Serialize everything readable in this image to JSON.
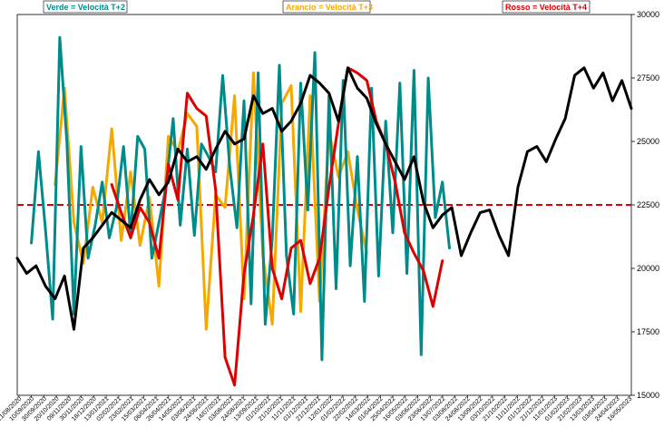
{
  "chart_data": {
    "type": "line",
    "title": "",
    "xlabel": "",
    "ylabel": "",
    "ylim": [
      15000,
      30000
    ],
    "y_ticks": [
      "30000",
      "27500",
      "25000",
      "22500",
      "20000",
      "17500",
      "15000"
    ],
    "y_tick_values": [
      30000,
      27500,
      25000,
      22500,
      20000,
      17500,
      15000
    ],
    "reference_line": {
      "value": 22500,
      "color": "#dd0000",
      "style": "dashed"
    },
    "x_tick_labels": [
      "21/08/2020",
      "10/09/2020",
      "30/09/2020",
      "20/10/2020",
      "09/11/2020",
      "30/11/2020",
      "18/12/2020",
      "13/01/2021",
      "02/02/2021",
      "23/02/2021",
      "15/03/2021",
      "06/04/2021",
      "26/04/2021",
      "14/05/2021",
      "03/06/2021",
      "24/06/2021",
      "14/07/2021",
      "03/08/2021",
      "24/08/2021",
      "13/09/2021",
      "01/10/2021",
      "21/10/2021",
      "11/11/2021",
      "01/12/2021",
      "21/12/2021",
      "12/01/2022",
      "01/02/2022",
      "22/02/2022",
      "14/03/2022",
      "01/04/2022",
      "25/04/2022",
      "16/05/2022",
      "03/06/2022",
      "23/06/2022",
      "13/07/2022",
      "03/08/2022",
      "24/08/2022",
      "13/09/2022",
      "03/10/2022",
      "21/10/2022",
      "11/11/2022",
      "01/12/2022",
      "21/12/2022",
      "11/01/2023",
      "01/02/2023",
      "21/02/2023",
      "13/03/2023",
      "03/04/2023",
      "24/04/2023",
      "16/05/2023"
    ],
    "legend": [
      {
        "label": "Verde = Velocità T+2",
        "color": "#008b8b",
        "position": "top-left"
      },
      {
        "label": "Arancio = Velocità T+3",
        "color": "#f5a800",
        "position": "top-center"
      },
      {
        "label": "Rosso = Velocità T+4",
        "color": "#dd0000",
        "position": "top-right"
      }
    ],
    "series": [
      {
        "color": "#000000",
        "axis": "right",
        "values": [
          [
            0,
            20400
          ],
          [
            2,
            19800
          ],
          [
            4,
            20100
          ],
          [
            6,
            19300
          ],
          [
            8,
            18800
          ],
          [
            10,
            19700
          ],
          [
            12,
            17600
          ],
          [
            14,
            20800
          ],
          [
            16,
            21200
          ],
          [
            18,
            21700
          ],
          [
            20,
            22200
          ],
          [
            22,
            21900
          ],
          [
            24,
            21600
          ],
          [
            26,
            22700
          ],
          [
            28,
            23500
          ],
          [
            30,
            22900
          ],
          [
            32,
            23400
          ],
          [
            34,
            24700
          ],
          [
            36,
            24200
          ],
          [
            38,
            24400
          ],
          [
            40,
            23900
          ],
          [
            42,
            24700
          ],
          [
            44,
            25400
          ],
          [
            46,
            24900
          ],
          [
            48,
            25100
          ],
          [
            50,
            26800
          ],
          [
            52,
            26100
          ],
          [
            54,
            26300
          ],
          [
            56,
            25400
          ],
          [
            58,
            25800
          ],
          [
            60,
            26500
          ],
          [
            62,
            27600
          ],
          [
            64,
            27300
          ],
          [
            66,
            26900
          ],
          [
            68,
            25800
          ],
          [
            70,
            27900
          ],
          [
            72,
            27100
          ],
          [
            74,
            26700
          ],
          [
            76,
            25700
          ],
          [
            78,
            24900
          ],
          [
            80,
            24200
          ],
          [
            82,
            23500
          ],
          [
            84,
            24400
          ],
          [
            86,
            22600
          ],
          [
            88,
            21600
          ],
          [
            90,
            22100
          ],
          [
            92,
            22400
          ],
          [
            94,
            20500
          ],
          [
            96,
            21400
          ],
          [
            98,
            22200
          ],
          [
            100,
            22300
          ],
          [
            102,
            21300
          ],
          [
            104,
            20500
          ],
          [
            106,
            23200
          ],
          [
            108,
            24600
          ],
          [
            110,
            24800
          ],
          [
            112,
            24200
          ],
          [
            114,
            25100
          ],
          [
            116,
            25900
          ],
          [
            118,
            27600
          ],
          [
            120,
            27900
          ],
          [
            122,
            27100
          ],
          [
            124,
            27700
          ],
          [
            126,
            26600
          ],
          [
            128,
            27400
          ],
          [
            130,
            26300
          ]
        ]
      },
      {
        "color": "#008b8b",
        "axis": "right",
        "values": [
          [
            3,
            21000
          ],
          [
            4.5,
            24600
          ],
          [
            6,
            21500
          ],
          [
            7.5,
            18000
          ],
          [
            9,
            29100
          ],
          [
            10.5,
            25000
          ],
          [
            12,
            18200
          ],
          [
            13.5,
            24800
          ],
          [
            15,
            20400
          ],
          [
            16.5,
            21700
          ],
          [
            18,
            23400
          ],
          [
            19.5,
            21200
          ],
          [
            21,
            22400
          ],
          [
            22.5,
            24800
          ],
          [
            24,
            21300
          ],
          [
            25.5,
            25200
          ],
          [
            27,
            24700
          ],
          [
            28.5,
            20400
          ],
          [
            30,
            21800
          ],
          [
            31.5,
            23200
          ],
          [
            33,
            25900
          ],
          [
            34.5,
            21700
          ],
          [
            36,
            24700
          ],
          [
            37.5,
            21300
          ],
          [
            39,
            24900
          ],
          [
            40.5,
            24400
          ],
          [
            42,
            23800
          ],
          [
            43.5,
            27600
          ],
          [
            45,
            24000
          ],
          [
            46.5,
            21600
          ],
          [
            48,
            26600
          ],
          [
            49.5,
            18600
          ],
          [
            51,
            27700
          ],
          [
            52.5,
            17800
          ],
          [
            54,
            21200
          ],
          [
            55.5,
            28000
          ],
          [
            57,
            20500
          ],
          [
            58.5,
            18200
          ],
          [
            60,
            27300
          ],
          [
            61.5,
            22300
          ],
          [
            63,
            28500
          ],
          [
            64.5,
            16400
          ],
          [
            66,
            26800
          ],
          [
            67.5,
            19200
          ],
          [
            69,
            27400
          ],
          [
            70.5,
            20100
          ],
          [
            72,
            24400
          ],
          [
            73.5,
            18700
          ],
          [
            75,
            27100
          ],
          [
            76.5,
            19700
          ],
          [
            78,
            25800
          ],
          [
            79.5,
            21400
          ],
          [
            81,
            27300
          ],
          [
            82.5,
            19800
          ],
          [
            84,
            27800
          ],
          [
            85.5,
            16600
          ],
          [
            87,
            27500
          ],
          [
            88.5,
            22000
          ],
          [
            90,
            23400
          ],
          [
            91.5,
            20800
          ]
        ]
      },
      {
        "color": "#f5a800",
        "axis": "right",
        "values": [
          [
            8,
            23300
          ],
          [
            10,
            27100
          ],
          [
            12,
            21800
          ],
          [
            14,
            20200
          ],
          [
            16,
            23200
          ],
          [
            18,
            21800
          ],
          [
            20,
            25500
          ],
          [
            22,
            21100
          ],
          [
            24,
            23800
          ],
          [
            26,
            20900
          ],
          [
            28,
            22800
          ],
          [
            30,
            19300
          ],
          [
            32,
            25200
          ],
          [
            34,
            24600
          ],
          [
            36,
            26100
          ],
          [
            38,
            25600
          ],
          [
            40,
            17600
          ],
          [
            42,
            22900
          ],
          [
            44,
            22400
          ],
          [
            46,
            26800
          ],
          [
            48,
            18800
          ],
          [
            50,
            27700
          ],
          [
            52,
            20500
          ],
          [
            54,
            17800
          ],
          [
            56,
            26500
          ],
          [
            58,
            27200
          ],
          [
            60,
            18300
          ],
          [
            62,
            26800
          ],
          [
            64,
            18700
          ],
          [
            66,
            25400
          ],
          [
            68,
            23600
          ],
          [
            70,
            24600
          ],
          [
            72,
            22300
          ],
          [
            74,
            20600
          ]
        ]
      },
      {
        "color": "#dd0000",
        "axis": "right",
        "values": [
          [
            20,
            23300
          ],
          [
            22,
            22200
          ],
          [
            24,
            21200
          ],
          [
            26,
            22400
          ],
          [
            28,
            21800
          ],
          [
            30,
            20400
          ],
          [
            32,
            24100
          ],
          [
            34,
            22700
          ],
          [
            36,
            26900
          ],
          [
            38,
            26300
          ],
          [
            40,
            26000
          ],
          [
            42,
            23100
          ],
          [
            44,
            16500
          ],
          [
            46,
            15400
          ],
          [
            48,
            19800
          ],
          [
            50,
            22100
          ],
          [
            52,
            24900
          ],
          [
            54,
            20000
          ],
          [
            56,
            18800
          ],
          [
            58,
            20800
          ],
          [
            60,
            21100
          ],
          [
            62,
            19400
          ],
          [
            64,
            20400
          ],
          [
            66,
            23200
          ],
          [
            68,
            25700
          ],
          [
            70,
            27900
          ],
          [
            72,
            27700
          ],
          [
            74,
            27400
          ],
          [
            76,
            25800
          ],
          [
            78,
            24900
          ],
          [
            80,
            23400
          ],
          [
            82,
            21400
          ],
          [
            84,
            20600
          ],
          [
            86,
            19900
          ],
          [
            88,
            18500
          ],
          [
            90,
            20300
          ]
        ]
      }
    ]
  }
}
